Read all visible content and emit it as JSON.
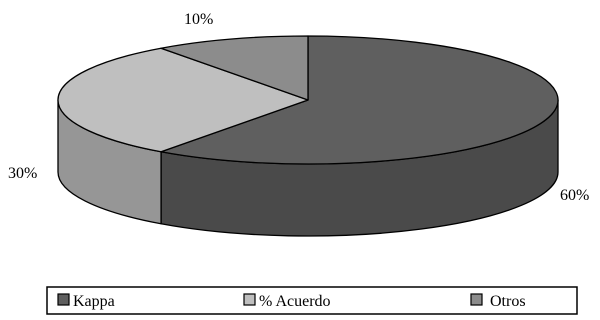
{
  "chart_data": {
    "type": "pie",
    "style": "3d",
    "legend_position": "bottom",
    "slices": [
      {
        "name": "Kappa",
        "value": 60,
        "label": "60%",
        "color": "#5f5f5f",
        "side_color": "#4a4a4a"
      },
      {
        "name": "% Acuerdo",
        "value": 30,
        "label": "30%",
        "color": "#bfbfbf",
        "side_color": "#969696"
      },
      {
        "name": "Otros",
        "value": 10,
        "label": "10%",
        "color": "#8c8c8c",
        "side_color": "#6e6e6e"
      }
    ]
  }
}
